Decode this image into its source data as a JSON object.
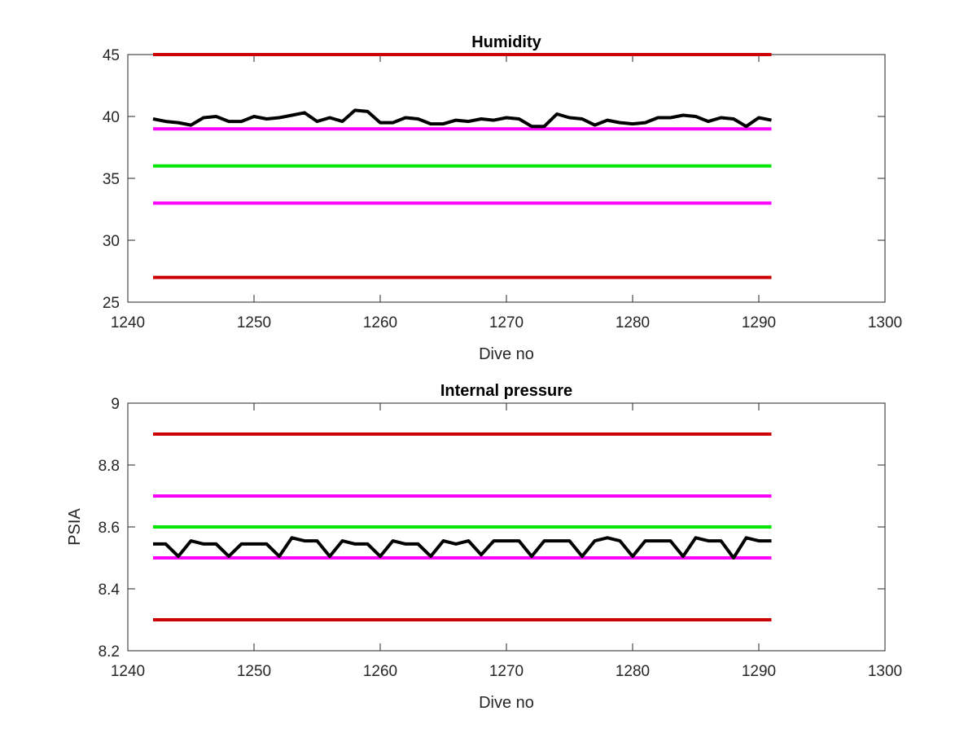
{
  "colors": {
    "red": "#cc0000",
    "magenta": "#ff00ff",
    "green": "#00e600",
    "black": "#000000",
    "axis": "#262626"
  },
  "chart_data": [
    {
      "type": "line",
      "title": "Humidity",
      "xlabel": "Dive no",
      "ylabel": "",
      "xlim": [
        1240,
        1300
      ],
      "ylim": [
        25,
        45
      ],
      "xticks": [
        "1240",
        "1250",
        "1260",
        "1270",
        "1280",
        "1290",
        "1300"
      ],
      "yticks": [
        "25",
        "30",
        "35",
        "40",
        "45"
      ],
      "grid": false,
      "hlines": [
        {
          "y": 45,
          "x": [
            1242,
            1291
          ],
          "color": "red"
        },
        {
          "y": 39,
          "x": [
            1242,
            1291
          ],
          "color": "magenta"
        },
        {
          "y": 36,
          "x": [
            1242,
            1291
          ],
          "color": "green"
        },
        {
          "y": 33,
          "x": [
            1242,
            1291
          ],
          "color": "magenta"
        },
        {
          "y": 27,
          "x": [
            1242,
            1291
          ],
          "color": "red"
        }
      ],
      "series": [
        {
          "color": "black",
          "x": [
            1242,
            1243,
            1244,
            1245,
            1246,
            1247,
            1248,
            1249,
            1250,
            1251,
            1252,
            1253,
            1254,
            1255,
            1256,
            1257,
            1258,
            1259,
            1260,
            1261,
            1262,
            1263,
            1264,
            1265,
            1266,
            1267,
            1268,
            1269,
            1270,
            1271,
            1272,
            1273,
            1274,
            1275,
            1276,
            1277,
            1278,
            1279,
            1280,
            1281,
            1282,
            1283,
            1284,
            1285,
            1286,
            1287,
            1288,
            1289,
            1290,
            1291
          ],
          "values": [
            39.8,
            39.6,
            39.5,
            39.3,
            39.9,
            40.0,
            39.6,
            39.6,
            40.0,
            39.8,
            39.9,
            40.1,
            40.3,
            39.6,
            39.9,
            39.6,
            40.5,
            40.4,
            39.5,
            39.5,
            39.9,
            39.8,
            39.4,
            39.4,
            39.7,
            39.6,
            39.8,
            39.7,
            39.9,
            39.8,
            39.2,
            39.2,
            40.2,
            39.9,
            39.8,
            39.3,
            39.7,
            39.5,
            39.4,
            39.5,
            39.9,
            39.9,
            40.1,
            40.0,
            39.6,
            39.9,
            39.8,
            39.2,
            39.9,
            39.7
          ]
        }
      ]
    },
    {
      "type": "line",
      "title": "Internal pressure",
      "xlabel": "Dive no",
      "ylabel": "PSIA",
      "xlim": [
        1240,
        1300
      ],
      "ylim": [
        8.2,
        9.0
      ],
      "xticks": [
        "1240",
        "1250",
        "1260",
        "1270",
        "1280",
        "1290",
        "1300"
      ],
      "yticks": [
        "8.2",
        "8.4",
        "8.6",
        "8.8",
        "9"
      ],
      "grid": false,
      "hlines": [
        {
          "y": 8.9,
          "x": [
            1242,
            1291
          ],
          "color": "red"
        },
        {
          "y": 8.7,
          "x": [
            1242,
            1291
          ],
          "color": "magenta"
        },
        {
          "y": 8.6,
          "x": [
            1242,
            1291
          ],
          "color": "green"
        },
        {
          "y": 8.5,
          "x": [
            1242,
            1291
          ],
          "color": "magenta"
        },
        {
          "y": 8.3,
          "x": [
            1242,
            1291
          ],
          "color": "red"
        }
      ],
      "series": [
        {
          "color": "black",
          "x": [
            1242,
            1243,
            1244,
            1245,
            1246,
            1247,
            1248,
            1249,
            1250,
            1251,
            1252,
            1253,
            1254,
            1255,
            1256,
            1257,
            1258,
            1259,
            1260,
            1261,
            1262,
            1263,
            1264,
            1265,
            1266,
            1267,
            1268,
            1269,
            1270,
            1271,
            1272,
            1273,
            1274,
            1275,
            1276,
            1277,
            1278,
            1279,
            1280,
            1281,
            1282,
            1283,
            1284,
            1285,
            1286,
            1287,
            1288,
            1289,
            1290,
            1291
          ],
          "values": [
            8.545,
            8.545,
            8.505,
            8.555,
            8.545,
            8.545,
            8.505,
            8.545,
            8.545,
            8.545,
            8.505,
            8.565,
            8.555,
            8.555,
            8.505,
            8.555,
            8.545,
            8.545,
            8.505,
            8.555,
            8.545,
            8.545,
            8.505,
            8.555,
            8.545,
            8.555,
            8.51,
            8.555,
            8.555,
            8.555,
            8.505,
            8.555,
            8.555,
            8.555,
            8.505,
            8.555,
            8.565,
            8.555,
            8.505,
            8.555,
            8.555,
            8.555,
            8.505,
            8.565,
            8.555,
            8.555,
            8.5,
            8.565,
            8.555,
            8.555
          ]
        }
      ]
    }
  ]
}
